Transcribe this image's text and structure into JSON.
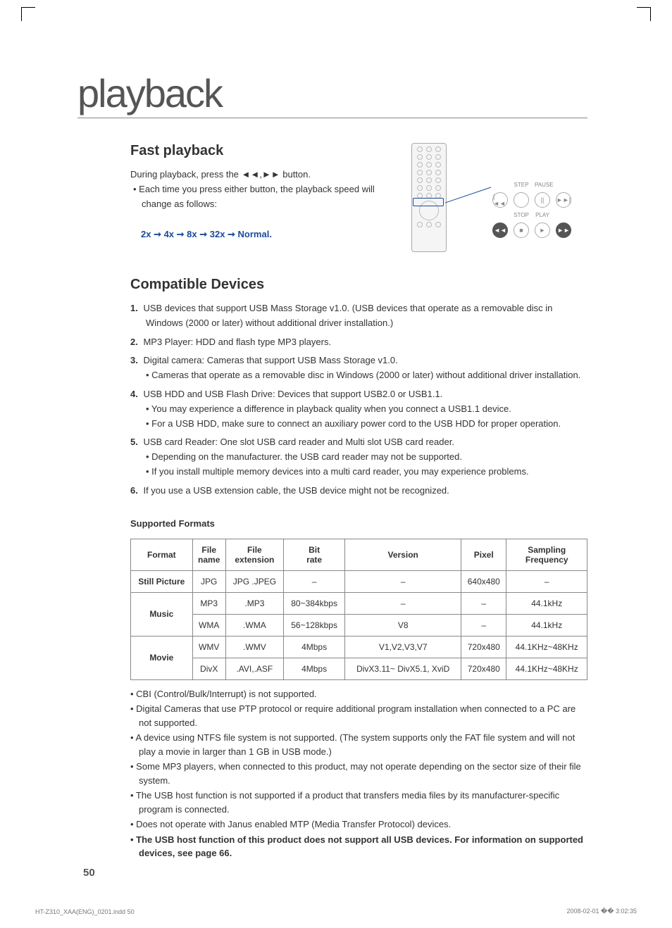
{
  "crop": {
    "show": true
  },
  "chapter": {
    "title": "playback"
  },
  "fast": {
    "heading": "Fast playback",
    "intro_pre": "During playback, press the ",
    "intro_post": " button.",
    "bullet": "Each time you press either button, the playback speed will change as follows:",
    "speed": "2x ➞ 4x ➞ 8x ➞ 32x ➞ Normal.",
    "btn_labels": {
      "step": "STEP",
      "pause": "PAUSE",
      "stop": "STOP",
      "play": "PLAY"
    },
    "btn_glyphs": {
      "prev": "|◄◄",
      "blank": "",
      "next": "►►|",
      "rew": "◄◄",
      "stop": "■",
      "play": "►",
      "ff": "►►",
      "pause": "||"
    }
  },
  "compat": {
    "heading": "Compatible Devices",
    "items": [
      {
        "n": "1.",
        "text": "USB devices that support USB Mass Storage v1.0. (USB devices that operate as a removable disc in Windows (2000 or later) without additional driver installation.)",
        "subs": []
      },
      {
        "n": "2.",
        "text": "MP3 Player: HDD and flash type MP3 players.",
        "subs": []
      },
      {
        "n": "3.",
        "text": "Digital camera: Cameras that support USB Mass Storage v1.0.",
        "subs": [
          "Cameras that operate as a removable disc in Windows (2000 or later) without additional driver installation."
        ]
      },
      {
        "n": "4.",
        "text": "USB HDD and USB Flash Drive: Devices that support USB2.0 or USB1.1.",
        "subs": [
          "You may experience a difference in playback quality when you connect a USB1.1 device.",
          "For a USB HDD, make sure to connect an auxiliary power cord to the USB HDD for proper operation."
        ]
      },
      {
        "n": "5.",
        "text": "USB card Reader: One slot USB card reader and Multi slot USB card reader.",
        "subs": [
          "Depending on the manufacturer. the USB card reader may not be supported.",
          "If you install multiple memory devices into a multi card reader, you may experience problems."
        ]
      },
      {
        "n": "6.",
        "text": "If you use a USB extension cable, the USB device might not be recognized.",
        "subs": []
      }
    ]
  },
  "formats": {
    "heading": "Supported Formats",
    "columns": [
      "Format",
      "File name",
      "File extension",
      "Bit rate",
      "Version",
      "Pixel",
      "Sampling Frequency"
    ],
    "groups": [
      {
        "format": "Still Picture",
        "rows": [
          {
            "name": "JPG",
            "ext": "JPG .JPEG",
            "bit": "–",
            "ver": "–",
            "pix": "640x480",
            "samp": "–"
          }
        ]
      },
      {
        "format": "Music",
        "rows": [
          {
            "name": "MP3",
            "ext": ".MP3",
            "bit": "80~384kbps",
            "ver": "–",
            "pix": "–",
            "samp": "44.1kHz"
          },
          {
            "name": "WMA",
            "ext": ".WMA",
            "bit": "56~128kbps",
            "ver": "V8",
            "pix": "–",
            "samp": "44.1kHz"
          }
        ]
      },
      {
        "format": "Movie",
        "rows": [
          {
            "name": "WMV",
            "ext": ".WMV",
            "bit": "4Mbps",
            "ver": "V1,V2,V3,V7",
            "pix": "720x480",
            "samp": "44.1KHz~48KHz"
          },
          {
            "name": "DivX",
            "ext": ".AVI,.ASF",
            "bit": "4Mbps",
            "ver": "DivX3.11~ DivX5.1, XviD",
            "pix": "720x480",
            "samp": "44.1KHz~48KHz"
          }
        ]
      }
    ]
  },
  "notes": [
    {
      "text": "CBI (Control/Bulk/Interrupt) is not supported.",
      "bold": false
    },
    {
      "text": "Digital Cameras that use PTP protocol or require additional program installation when connected to a PC are not supported.",
      "bold": false
    },
    {
      "text": "A device using NTFS file system is not supported. (The system supports only the FAT file system and will not play a movie in larger than 1 GB in USB mode.)",
      "bold": false
    },
    {
      "text": "Some MP3 players, when connected to this product, may not operate depending on the sector size of their file system.",
      "bold": false
    },
    {
      "text": "The USB host function is not supported if a product that transfers media files by its manufacturer-specific program is connected.",
      "bold": false
    },
    {
      "text": "Does not operate with Janus enabled MTP (Media Transfer Protocol) devices.",
      "bold": false
    },
    {
      "text": "The USB host function of this product does not support all USB devices. For information on supported devices, see page 66.",
      "bold": true
    }
  ],
  "page": {
    "num": "50"
  },
  "footer": {
    "left": "HT-Z310_XAA(ENG)_0201.indd   50",
    "right": "2008-02-01   �� 3:02:35"
  },
  "colors": {
    "accent": "#1a4a9a",
    "border": "#888",
    "text": "#333",
    "muted": "#555"
  }
}
